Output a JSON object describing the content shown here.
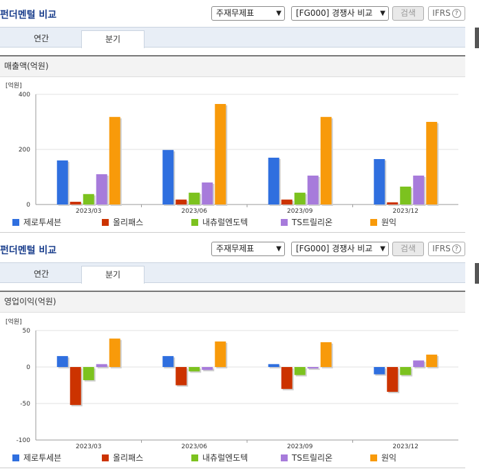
{
  "header": {
    "title": "펀더멘털 비교",
    "statement_select": "주재무제표",
    "peer_select": "[FG000] 경쟁사 비교",
    "search_label": "검색",
    "ifrs_label": "IFRS",
    "help_glyph": "?"
  },
  "tabs": [
    "연간",
    "분기"
  ],
  "active_tab": "분기",
  "colors": [
    "#2f6fdf",
    "#cc3300",
    "#7cc21f",
    "#a77bdb",
    "#f89a0a"
  ],
  "legend": [
    "제로투세븐",
    "올리패스",
    "내츄럴엔도텍",
    "TS트릴리온",
    "원익"
  ],
  "chart_data": [
    {
      "type": "bar",
      "title": "매출액(억원)",
      "unit_label": "[억원]",
      "categories": [
        "2023/03",
        "2023/06",
        "2023/09",
        "2023/12"
      ],
      "ylim": [
        0,
        400
      ],
      "yticks": [
        0,
        200,
        400
      ],
      "grid": true,
      "legend_position": "bottom",
      "series": [
        {
          "name": "제로투세븐",
          "values": [
            160,
            198,
            170,
            165
          ]
        },
        {
          "name": "올리패스",
          "values": [
            10,
            18,
            18,
            8
          ]
        },
        {
          "name": "내츄럴엔도텍",
          "values": [
            38,
            43,
            43,
            65
          ]
        },
        {
          "name": "TS트릴리온",
          "values": [
            110,
            80,
            105,
            105
          ]
        },
        {
          "name": "원익",
          "values": [
            318,
            365,
            318,
            300
          ]
        }
      ]
    },
    {
      "type": "bar",
      "title": "영업이익(억원)",
      "unit_label": "[억원]",
      "categories": [
        "2023/03",
        "2023/06",
        "2023/09",
        "2023/12"
      ],
      "ylim": [
        -100,
        50
      ],
      "yticks": [
        -100,
        -50,
        0,
        50
      ],
      "grid": true,
      "legend_position": "bottom",
      "series": [
        {
          "name": "제로투세븐",
          "values": [
            15,
            15,
            4,
            -10
          ]
        },
        {
          "name": "올리패스",
          "values": [
            -52,
            -25,
            -30,
            -34
          ]
        },
        {
          "name": "내츄럴엔도텍",
          "values": [
            -18,
            -6,
            -11,
            -11
          ]
        },
        {
          "name": "TS트릴리온",
          "values": [
            4,
            -4,
            -2,
            9
          ]
        },
        {
          "name": "원익",
          "values": [
            39,
            35,
            34,
            17
          ]
        }
      ]
    }
  ]
}
